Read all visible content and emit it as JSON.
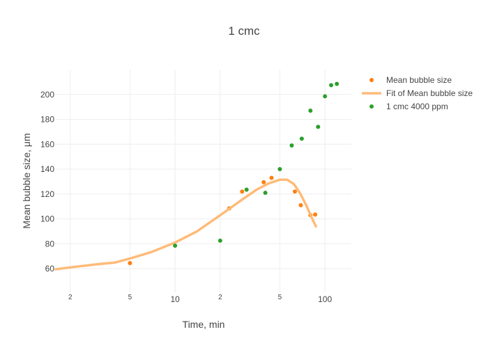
{
  "chart_data": {
    "type": "scatter",
    "title": "1 cmc",
    "xlabel": "Time, min",
    "ylabel": "Mean bubble size, μm",
    "x_scale": "log",
    "xlim": [
      1.6,
      150
    ],
    "ylim": [
      41,
      220
    ],
    "y_ticks": [
      60,
      80,
      100,
      120,
      140,
      160,
      180,
      200
    ],
    "x_major_ticks": [
      {
        "value": 10,
        "label": "10"
      },
      {
        "value": 100,
        "label": "100"
      }
    ],
    "x_minor_ticks": [
      {
        "value": 2,
        "label": "2"
      },
      {
        "value": 5,
        "label": "5"
      },
      {
        "value": 20,
        "label": "2"
      },
      {
        "value": 50,
        "label": "5"
      }
    ],
    "grid": true,
    "legend_position": "top-right",
    "series": [
      {
        "name": "Mean bubble size",
        "mode": "markers",
        "color": "#ff7f0e",
        "points": [
          [
            5,
            64.5
          ],
          [
            23,
            108.5
          ],
          [
            28,
            122
          ],
          [
            39,
            129.5
          ],
          [
            44,
            133
          ],
          [
            63,
            122
          ],
          [
            69,
            111
          ],
          [
            80,
            103
          ],
          [
            86,
            103.5
          ]
        ]
      },
      {
        "name": "Fit of Mean bubble size",
        "mode": "line",
        "color": "#ffbb78",
        "points": [
          [
            1.6,
            59.5
          ],
          [
            2,
            61
          ],
          [
            3,
            63.5
          ],
          [
            4,
            65
          ],
          [
            5,
            68.2
          ],
          [
            7,
            73.5
          ],
          [
            10,
            81
          ],
          [
            14,
            90
          ],
          [
            20,
            103
          ],
          [
            28,
            115.5
          ],
          [
            35,
            123.5
          ],
          [
            42,
            128.5
          ],
          [
            50,
            131.5
          ],
          [
            56,
            131.5
          ],
          [
            62,
            128
          ],
          [
            68,
            121
          ],
          [
            75,
            111
          ],
          [
            82,
            100.5
          ],
          [
            87,
            94
          ]
        ]
      },
      {
        "name": "1 cmc 4000 ppm",
        "mode": "markers",
        "color": "#2ca02c",
        "points": [
          [
            10,
            78.5
          ],
          [
            20,
            82.5
          ],
          [
            30,
            123.5
          ],
          [
            40,
            121
          ],
          [
            50,
            140
          ],
          [
            60,
            159
          ],
          [
            70,
            164.5
          ],
          [
            80,
            187
          ],
          [
            90,
            174
          ],
          [
            100,
            198.5
          ],
          [
            110,
            207.5
          ],
          [
            120,
            208.5
          ]
        ]
      }
    ]
  }
}
